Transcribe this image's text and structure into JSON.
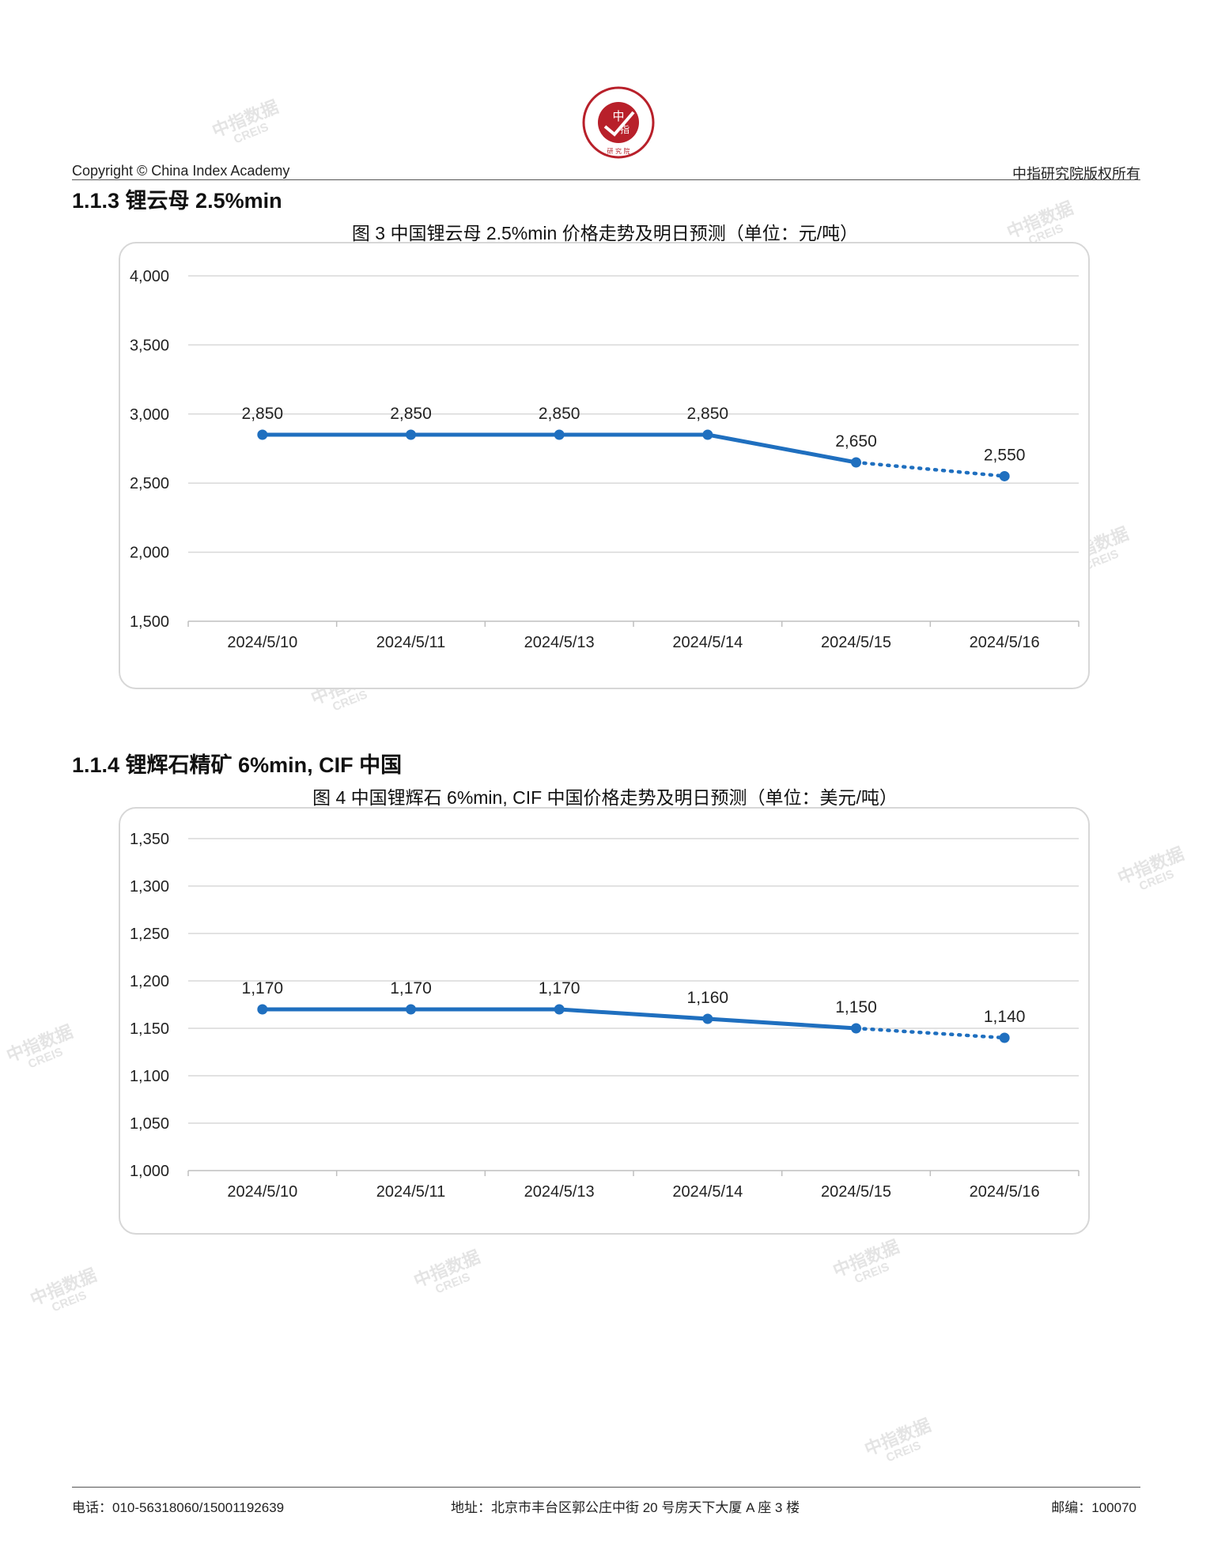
{
  "header": {
    "copyright": "Copyright © China Index Academy",
    "rights": "中指研究院版权所有",
    "logo_text": "CHINA INDEX ACADEMY 中指 研究院"
  },
  "watermark": {
    "cn": "中指数据",
    "en": "CREIS"
  },
  "sections": [
    {
      "heading": "1.1.3 锂云母 2.5%min",
      "caption": "图 3 中国锂云母 2.5%min 价格走势及明日预测（单位：元/吨）"
    },
    {
      "heading": "1.1.4 锂辉石精矿 6%min, CIF 中国",
      "caption": "图 4 中国锂辉石 6%min, CIF 中国价格走势及明日预测（单位：美元/吨）"
    }
  ],
  "chart_data": [
    {
      "type": "line",
      "title": "图 3 中国锂云母 2.5%min 价格走势及明日预测（单位：元/吨）",
      "categories": [
        "2024/5/10",
        "2024/5/11",
        "2024/5/13",
        "2024/5/14",
        "2024/5/15",
        "2024/5/16"
      ],
      "values": [
        2850,
        2850,
        2850,
        2850,
        2650,
        2550
      ],
      "data_labels": [
        "2,850",
        "2,850",
        "2,850",
        "2,850",
        "2,650",
        "2,550"
      ],
      "forecast_from_index": 4,
      "ylim": [
        1500,
        4000
      ],
      "yticks": [
        1500,
        2000,
        2500,
        3000,
        3500,
        4000
      ],
      "ytick_labels": [
        "1,500",
        "2,000",
        "2,500",
        "3,000",
        "3,500",
        "4,000"
      ],
      "grid": true,
      "legend": "none",
      "color": "#1f6fbf"
    },
    {
      "type": "line",
      "title": "图 4 中国锂辉石 6%min, CIF 中国价格走势及明日预测（单位：美元/吨）",
      "categories": [
        "2024/5/10",
        "2024/5/11",
        "2024/5/13",
        "2024/5/14",
        "2024/5/15",
        "2024/5/16"
      ],
      "values": [
        1170,
        1170,
        1170,
        1160,
        1150,
        1140
      ],
      "data_labels": [
        "1,170",
        "1,170",
        "1,170",
        "1,160",
        "1,150",
        "1,140"
      ],
      "forecast_from_index": 4,
      "ylim": [
        1000,
        1350
      ],
      "yticks": [
        1000,
        1050,
        1100,
        1150,
        1200,
        1250,
        1300,
        1350
      ],
      "ytick_labels": [
        "1,000",
        "1,050",
        "1,100",
        "1,150",
        "1,200",
        "1,250",
        "1,300",
        "1,350"
      ],
      "grid": true,
      "legend": "none",
      "color": "#1f6fbf"
    }
  ],
  "footer": {
    "phone": "电话：010-56318060/15001192639",
    "address": "地址：北京市丰台区郭公庄中街 20 号房天下大厦 A 座 3 楼",
    "postcode": "邮编：100070"
  }
}
